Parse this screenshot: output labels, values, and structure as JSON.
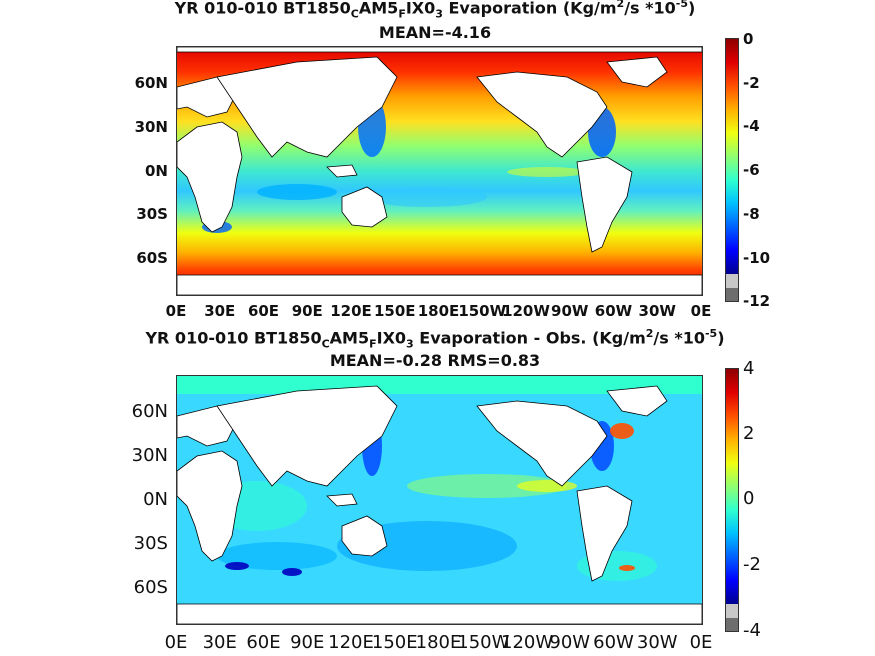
{
  "panel1": {
    "title": "YR 010-010 BT1850",
    "title_sub1": "C",
    "title_mid1": "AM5",
    "title_sub2": "F",
    "title_mid2": "IX0",
    "title_sub3": "3",
    "title_tail": "  Evaporation (Kg/m",
    "title_sup1": "2",
    "title_tail2": "/s *10",
    "title_sup2": "-5",
    "title_close": ")",
    "stats": "MEAN=-4.16",
    "lat_ticks": [
      "60N",
      "30N",
      "0N",
      "30S",
      "60S"
    ],
    "lon_ticks": [
      "0E",
      "30E",
      "60E",
      "90E",
      "120E",
      "150E",
      "180E",
      "150W",
      "120W",
      "90W",
      "60W",
      "30W",
      "0E"
    ],
    "colorbar_ticks": [
      "0",
      "-2",
      "-4",
      "-6",
      "-8",
      "-10",
      "-12"
    ],
    "range": [
      -12,
      0
    ]
  },
  "panel2": {
    "title": "YR 010-010 BT1850",
    "title_sub1": "C",
    "title_mid1": "AM5",
    "title_sub2": "F",
    "title_mid2": "IX0",
    "title_sub3": "3",
    "title_tail": " Evaporation - Obs. (Kg/m",
    "title_sup1": "2",
    "title_tail2": "/s *10",
    "title_sup2": "-5",
    "title_close": ")",
    "stats": "MEAN=-0.28   RMS=0.83",
    "lat_ticks": [
      "60N",
      "30N",
      "0N",
      "30S",
      "60S"
    ],
    "lon_ticks": [
      "0E",
      "30E",
      "60E",
      "90E",
      "120E",
      "150E",
      "180E",
      "150W",
      "120W",
      "90W",
      "60W",
      "30W",
      "0E"
    ],
    "colorbar_ticks": [
      "4",
      "2",
      "0",
      "-2",
      "-4"
    ],
    "range": [
      -4,
      4
    ]
  },
  "colors": {
    "jet": [
      "#00008f",
      "#0000ff",
      "#0060ff",
      "#00c0ff",
      "#30ffd0",
      "#90ff70",
      "#f0ff10",
      "#ffb000",
      "#ff5000",
      "#e00000"
    ],
    "land": "#ffffff",
    "coast": "#000000",
    "undefined": "#7f7f7f"
  }
}
